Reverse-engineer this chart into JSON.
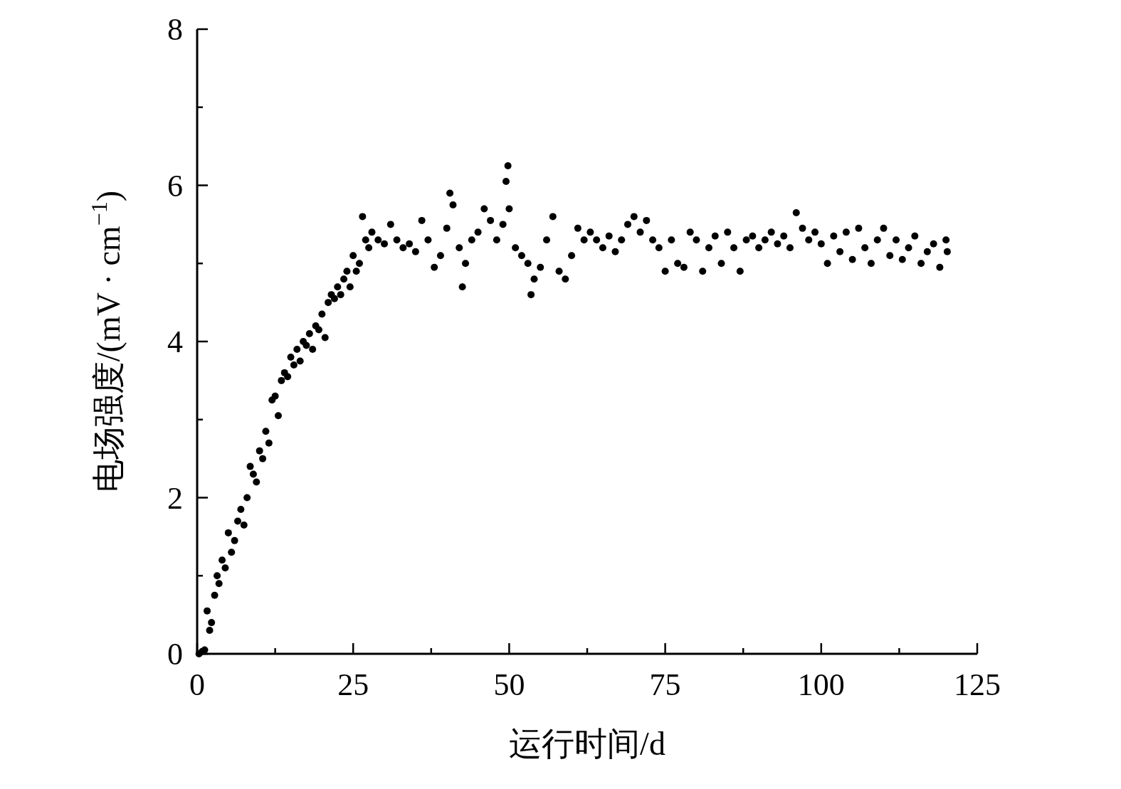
{
  "chart_data": {
    "type": "scatter",
    "xlabel": "运行时间/d",
    "ylabel": "电场强度/(mV · cm$^{−1}$)",
    "xlim": [
      0,
      125
    ],
    "xticks": [
      0,
      {
        "value": 12.5,
        "label": null
      },
      25,
      {
        "value": 37.5,
        "label": null
      },
      50,
      {
        "value": 62.5,
        "label": null
      },
      75,
      {
        "value": 87.5,
        "label": null
      },
      100,
      {
        "value": 112.5,
        "label": null
      },
      125
    ],
    "ylim": [
      0,
      8
    ],
    "yticks": [
      0,
      {
        "value": 1,
        "label": null
      },
      2,
      {
        "value": 3,
        "label": null
      },
      4,
      {
        "value": 5,
        "label": null
      },
      6,
      {
        "value": 7,
        "label": null
      },
      8
    ],
    "grid": false,
    "marker": "circle",
    "series": [
      {
        "color": "#000000",
        "x": [
          0.3,
          0.8,
          1.2,
          1.6,
          2,
          2.3,
          2.8,
          3.2,
          3.5,
          4,
          4.5,
          5,
          5.5,
          6,
          6.5,
          7,
          7.5,
          8,
          8.5,
          9,
          9.5,
          10,
          10.5,
          11,
          11.5,
          12,
          12.5,
          13,
          13.5,
          14,
          14.5,
          15,
          15.5,
          16,
          16.5,
          17,
          17.5,
          18,
          18.5,
          19,
          19.5,
          20,
          20.5,
          21,
          21.5,
          22,
          22.5,
          23,
          23.5,
          24,
          24.5,
          25,
          25.5,
          26,
          26.5,
          27,
          27.5,
          28,
          29,
          30,
          31,
          32,
          33,
          34,
          35,
          36,
          37,
          38,
          39,
          40,
          40.5,
          41,
          42,
          42.5,
          43,
          44,
          45,
          46,
          47,
          48,
          49,
          49.5,
          49.8,
          50,
          51,
          52,
          53,
          53.5,
          54,
          55,
          56,
          57,
          58,
          59,
          60,
          61,
          62,
          63,
          64,
          65,
          66,
          67,
          68,
          69,
          70,
          71,
          72,
          73,
          74,
          75,
          76,
          77,
          78,
          79,
          80,
          81,
          82,
          83,
          84,
          85,
          86,
          87,
          88,
          89,
          90,
          91,
          92,
          93,
          94,
          95,
          96,
          97,
          98,
          99,
          100,
          101,
          102,
          103,
          104,
          105,
          106,
          107,
          108,
          109,
          110,
          111,
          112,
          113,
          114,
          115,
          116,
          117,
          118,
          119,
          120,
          120.2
        ],
        "values": [
          0,
          0.03,
          0.05,
          0.55,
          0.3,
          0.4,
          0.75,
          1.0,
          0.9,
          1.2,
          1.1,
          1.55,
          1.3,
          1.45,
          1.7,
          1.85,
          1.65,
          2.0,
          2.4,
          2.3,
          2.2,
          2.6,
          2.5,
          2.85,
          2.7,
          3.25,
          3.3,
          3.05,
          3.5,
          3.6,
          3.55,
          3.8,
          3.7,
          3.9,
          3.75,
          4.0,
          3.95,
          4.1,
          3.9,
          4.2,
          4.15,
          4.35,
          4.05,
          4.5,
          4.6,
          4.55,
          4.7,
          4.6,
          4.8,
          4.9,
          4.7,
          5.1,
          4.9,
          5.0,
          5.6,
          5.3,
          5.2,
          5.4,
          5.3,
          5.25,
          5.5,
          5.3,
          5.2,
          5.25,
          5.15,
          5.55,
          5.3,
          4.95,
          5.1,
          5.45,
          5.9,
          5.75,
          5.2,
          4.7,
          5.0,
          5.3,
          5.4,
          5.7,
          5.55,
          5.3,
          5.5,
          6.05,
          6.25,
          5.7,
          5.2,
          5.1,
          5.0,
          4.6,
          4.8,
          4.95,
          5.3,
          5.6,
          4.9,
          4.8,
          5.1,
          5.45,
          5.3,
          5.4,
          5.3,
          5.2,
          5.35,
          5.15,
          5.3,
          5.5,
          5.6,
          5.4,
          5.55,
          5.3,
          5.2,
          4.9,
          5.3,
          5.0,
          4.95,
          5.4,
          5.3,
          4.9,
          5.2,
          5.35,
          5.0,
          5.4,
          5.2,
          4.9,
          5.3,
          5.35,
          5.2,
          5.3,
          5.4,
          5.25,
          5.35,
          5.2,
          5.65,
          5.45,
          5.3,
          5.4,
          5.25,
          5.0,
          5.35,
          5.15,
          5.4,
          5.05,
          5.45,
          5.2,
          5.0,
          5.3,
          5.45,
          5.1,
          5.3,
          5.05,
          5.2,
          5.35,
          5.0,
          5.15,
          5.25,
          4.95,
          5.3,
          5.15
        ]
      }
    ]
  }
}
